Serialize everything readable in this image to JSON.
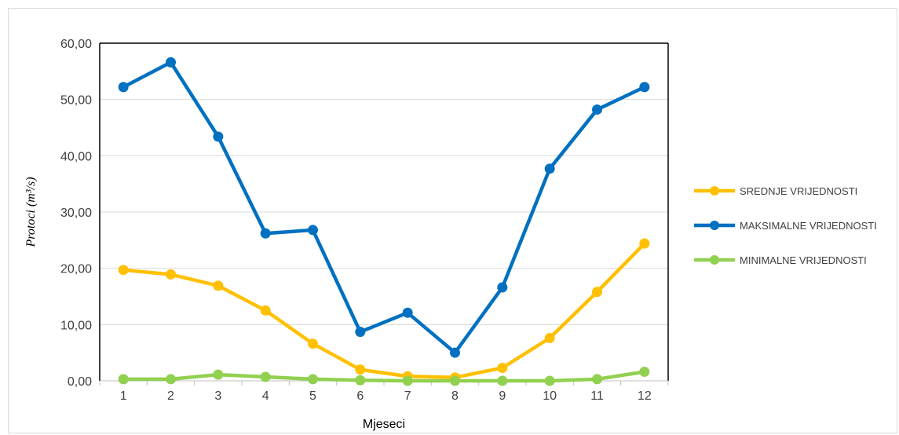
{
  "chart_data": {
    "type": "line",
    "title": "",
    "xlabel": "Mjeseci",
    "ylabel": "Protoci (m³/s)",
    "ylim": [
      0,
      60
    ],
    "yticks": [
      "0,00",
      "10,00",
      "20,00",
      "30,00",
      "40,00",
      "50,00",
      "60,00"
    ],
    "categories": [
      "1",
      "2",
      "3",
      "4",
      "5",
      "6",
      "7",
      "8",
      "9",
      "10",
      "11",
      "12"
    ],
    "grid": true,
    "legend_position": "right",
    "series": [
      {
        "name": "SREDNJE VRIJEDNOSTI",
        "color": "#FFC000",
        "values": [
          19.7,
          18.9,
          16.9,
          12.5,
          6.6,
          2.0,
          0.8,
          0.6,
          2.3,
          7.6,
          15.8,
          24.4
        ]
      },
      {
        "name": "MAKSIMALNE VRIJEDNOSTI",
        "color": "#0070C0",
        "values": [
          52.2,
          56.6,
          43.4,
          26.2,
          26.8,
          8.7,
          12.1,
          5.0,
          16.6,
          37.7,
          48.2,
          52.2
        ]
      },
      {
        "name": "MINIMALNE VRIJEDNOSTI",
        "color": "#92D050",
        "values": [
          0.3,
          0.3,
          1.1,
          0.7,
          0.3,
          0.1,
          0.0,
          0.0,
          0.0,
          0.0,
          0.3,
          1.6
        ]
      }
    ]
  }
}
